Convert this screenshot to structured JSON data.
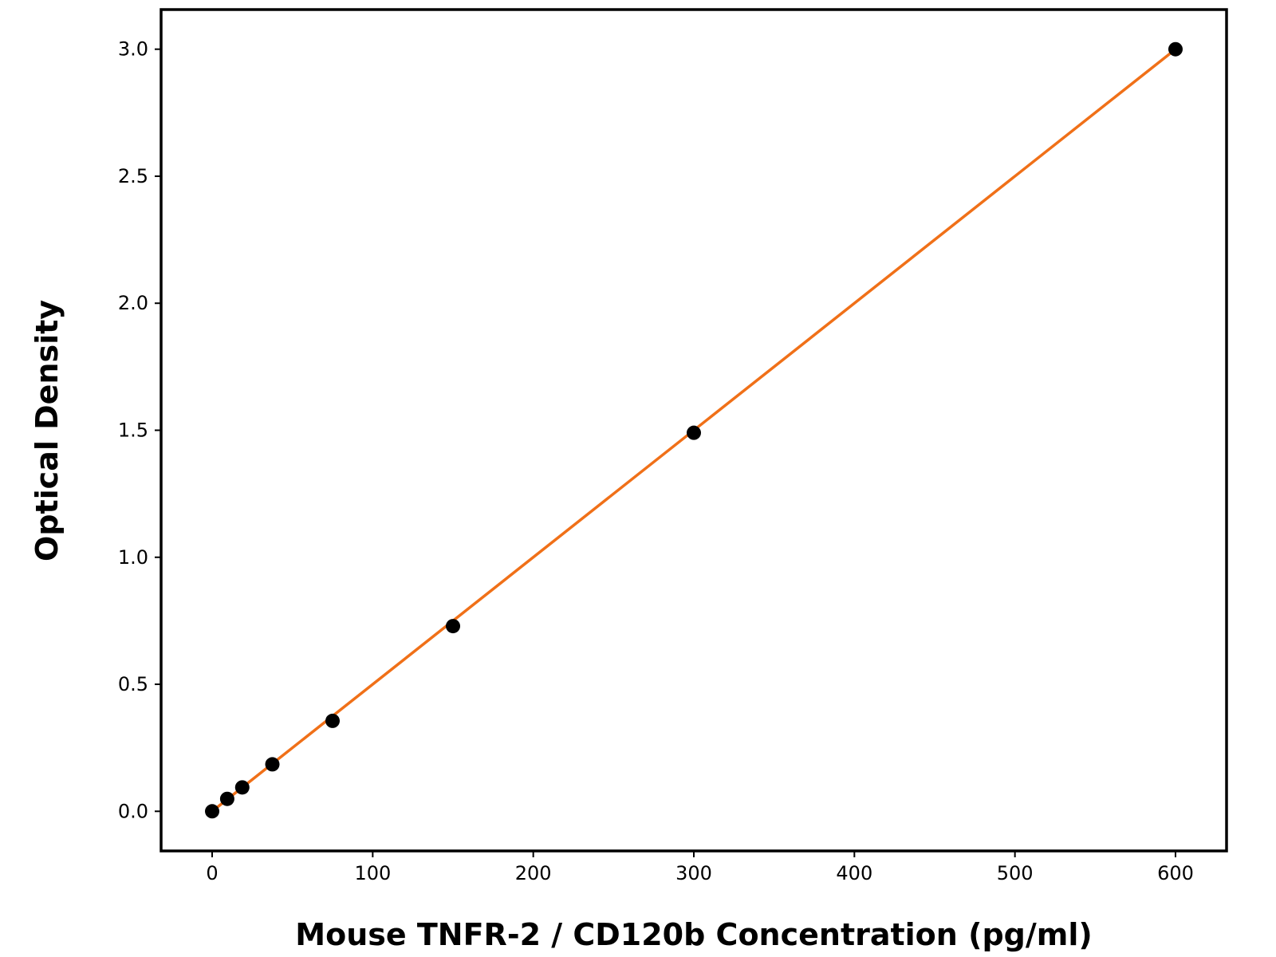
{
  "chart_data": {
    "type": "scatter",
    "title": "",
    "xlabel": "Mouse TNFR-2 / CD120b Concentration (pg/ml)",
    "ylabel": "Optical Density",
    "xlim": [
      -31.8,
      631.8
    ],
    "ylim": [
      -0.156,
      3.156
    ],
    "xticks": [
      "0",
      "100",
      "200",
      "300",
      "400",
      "500",
      "600"
    ],
    "yticks": [
      "0.0",
      "0.5",
      "1.0",
      "1.5",
      "2.0",
      "2.5",
      "3.0"
    ],
    "grid": false,
    "points": {
      "x": [
        0,
        9.375,
        18.75,
        37.5,
        75,
        150,
        300,
        600
      ],
      "y": [
        0.0,
        0.049,
        0.094,
        0.185,
        0.356,
        0.729,
        1.49,
        3.0
      ],
      "color": "#000000"
    },
    "fit_line": {
      "x": [
        0,
        600
      ],
      "y": [
        0.0,
        3.0
      ],
      "color": "#f07018"
    }
  }
}
